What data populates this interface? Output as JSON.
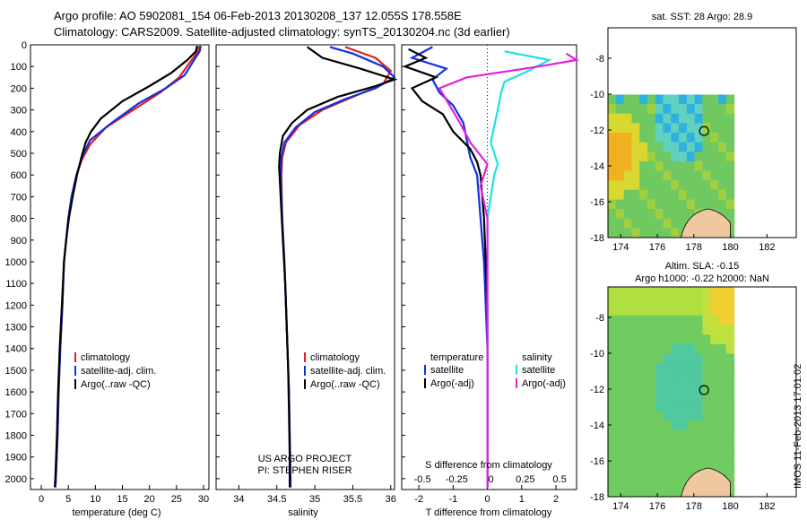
{
  "header": {
    "line1": "Argo profile: AO 5902081_154 06-Feb-2013 20130208_137 12.055S 178.558E",
    "line2": "Climatology: CARS2009. Satellite-adjusted climatology: synTS_20130204.nc (3d earlier)"
  },
  "side_stamp": "IMOS 11-Feb-2013 17:01:02",
  "colors": {
    "climatology": "#e02020",
    "satellite": "#1030e0",
    "argo": "#000000",
    "sal_satellite": "#20e0e0",
    "sal_argo": "#e020e0",
    "land": "#f0c8a0"
  },
  "chart_data": [
    {
      "id": "temperature",
      "type": "line",
      "xlabel": "temperature (deg C)",
      "xlim": [
        -2,
        31
      ],
      "xticks": [
        0,
        5,
        10,
        15,
        20,
        25,
        30
      ],
      "ylim": [
        2050,
        0
      ],
      "yticks": [
        0,
        100,
        200,
        300,
        400,
        500,
        600,
        700,
        800,
        900,
        1000,
        1100,
        1200,
        1300,
        1400,
        1500,
        1600,
        1700,
        1800,
        1900,
        2000
      ],
      "legend": [
        "climatology",
        "satellite-adj. clim.",
        "Argo(..raw -QC)"
      ],
      "series": [
        {
          "name": "climatology",
          "color": "#e02020",
          "points": [
            [
              29.2,
              5
            ],
            [
              29.0,
              30
            ],
            [
              27.5,
              80
            ],
            [
              25.5,
              150
            ],
            [
              22,
              220
            ],
            [
              17,
              300
            ],
            [
              12,
              380
            ],
            [
              9,
              460
            ],
            [
              7.5,
              530
            ],
            [
              6.5,
              600
            ],
            [
              5.6,
              700
            ],
            [
              5,
              800
            ],
            [
              4.6,
              900
            ],
            [
              4.2,
              1000
            ],
            [
              3.9,
              1200
            ],
            [
              3.5,
              1400
            ],
            [
              3.2,
              1600
            ],
            [
              3,
              1800
            ],
            [
              2.7,
              2000
            ],
            [
              2.6,
              2040
            ]
          ]
        },
        {
          "name": "satellite-adj. clim.",
          "color": "#1030e0",
          "points": [
            [
              29.5,
              5
            ],
            [
              29.3,
              30
            ],
            [
              28,
              80
            ],
            [
              26.5,
              140
            ],
            [
              23,
              200
            ],
            [
              18,
              270
            ],
            [
              13,
              360
            ],
            [
              9,
              440
            ],
            [
              7.5,
              520
            ],
            [
              6.5,
              600
            ],
            [
              5.6,
              700
            ],
            [
              5,
              800
            ],
            [
              4.6,
              900
            ],
            [
              4.2,
              1000
            ],
            [
              3.9,
              1200
            ],
            [
              3.5,
              1400
            ],
            [
              3.2,
              1600
            ],
            [
              3,
              1800
            ],
            [
              2.7,
              2000
            ],
            [
              2.6,
              2040
            ]
          ]
        },
        {
          "name": "Argo(..raw -QC)",
          "color": "#000000",
          "points": [
            [
              28.8,
              5
            ],
            [
              28.6,
              30
            ],
            [
              27,
              70
            ],
            [
              24,
              130
            ],
            [
              20,
              190
            ],
            [
              15,
              260
            ],
            [
              11,
              340
            ],
            [
              9.2,
              400
            ],
            [
              8.2,
              450
            ],
            [
              7.4,
              520
            ],
            [
              6.6,
              600
            ],
            [
              5.8,
              700
            ],
            [
              5.1,
              800
            ],
            [
              4.6,
              900
            ],
            [
              4.2,
              1000
            ],
            [
              3.8,
              1200
            ],
            [
              3.4,
              1400
            ],
            [
              3.1,
              1600
            ],
            [
              2.9,
              1800
            ],
            [
              2.6,
              2000
            ],
            [
              2.5,
              2040
            ]
          ]
        }
      ]
    },
    {
      "id": "salinity",
      "type": "line",
      "xlabel": "salinity",
      "xlim": [
        33.7,
        36.05
      ],
      "xticks": [
        34,
        34.5,
        35,
        35.5,
        36
      ],
      "ylim": [
        2050,
        0
      ],
      "legend": [
        "climatology",
        "satellite-adj. clim.",
        "Argo(..raw -QC)"
      ],
      "annotation": [
        "US ARGO PROJECT",
        "PI: STEPHEN RISER"
      ],
      "series": [
        {
          "name": "climatology",
          "color": "#e02020",
          "points": [
            [
              35.4,
              10
            ],
            [
              35.8,
              60
            ],
            [
              36.0,
              120
            ],
            [
              35.9,
              180
            ],
            [
              35.5,
              240
            ],
            [
              35.1,
              300
            ],
            [
              34.8,
              370
            ],
            [
              34.62,
              450
            ],
            [
              34.57,
              520
            ],
            [
              34.56,
              600
            ],
            [
              34.57,
              800
            ],
            [
              34.6,
              1000
            ],
            [
              34.62,
              1200
            ],
            [
              34.64,
              1400
            ],
            [
              34.66,
              1600
            ],
            [
              34.67,
              1800
            ],
            [
              34.68,
              2000
            ],
            [
              34.68,
              2040
            ]
          ]
        },
        {
          "name": "satellite-adj. clim.",
          "color": "#1030e0",
          "points": [
            [
              35.2,
              10
            ],
            [
              35.5,
              40
            ],
            [
              35.9,
              100
            ],
            [
              36.05,
              150
            ],
            [
              35.8,
              200
            ],
            [
              35.4,
              250
            ],
            [
              35.0,
              310
            ],
            [
              34.75,
              380
            ],
            [
              34.6,
              450
            ],
            [
              34.56,
              520
            ],
            [
              34.55,
              600
            ],
            [
              34.57,
              800
            ],
            [
              34.6,
              1000
            ],
            [
              34.62,
              1200
            ],
            [
              34.64,
              1400
            ],
            [
              34.66,
              1600
            ],
            [
              34.67,
              1800
            ],
            [
              34.68,
              2000
            ],
            [
              34.68,
              2040
            ]
          ]
        },
        {
          "name": "Argo(..raw -QC)",
          "color": "#000000",
          "points": [
            [
              34.9,
              10
            ],
            [
              35.1,
              60
            ],
            [
              35.6,
              110
            ],
            [
              36.05,
              160
            ],
            [
              35.8,
              190
            ],
            [
              35.3,
              240
            ],
            [
              34.9,
              300
            ],
            [
              34.7,
              360
            ],
            [
              34.58,
              420
            ],
            [
              34.54,
              500
            ],
            [
              34.53,
              560
            ],
            [
              34.55,
              700
            ],
            [
              34.58,
              900
            ],
            [
              34.61,
              1100
            ],
            [
              34.63,
              1300
            ],
            [
              34.65,
              1500
            ],
            [
              34.66,
              1700
            ],
            [
              34.67,
              1900
            ],
            [
              34.67,
              2040
            ]
          ]
        }
      ]
    },
    {
      "id": "difference",
      "type": "line",
      "xlabel": "T difference from climatology",
      "xlabel_top": "S difference from climatology",
      "xlim": [
        -2.5,
        2.6
      ],
      "xticks": [
        -2,
        -1,
        0,
        1,
        2
      ],
      "s_ticks": [
        [
          "-0.5",
          -2
        ],
        [
          "-0.25",
          -1
        ],
        [
          "0",
          0
        ],
        [
          "0.25",
          1
        ],
        [
          "0.5",
          2
        ]
      ],
      "ylim": [
        2050,
        0
      ],
      "legend_titles": [
        "temperature",
        "salinity"
      ],
      "legend": [
        "satellite",
        "Argo(-adj)",
        "satellite",
        "Argo(-adj)"
      ],
      "series": [
        {
          "name": "temperature satellite",
          "color": "#1030e0",
          "points": [
            [
              -1.6,
              10
            ],
            [
              -2.2,
              60
            ],
            [
              -1.2,
              110
            ],
            [
              -1.6,
              160
            ],
            [
              -1.4,
              220
            ],
            [
              -1.0,
              280
            ],
            [
              -0.7,
              360
            ],
            [
              -0.6,
              440
            ],
            [
              -0.5,
              520
            ],
            [
              -0.3,
              600
            ],
            [
              -0.2,
              800
            ],
            [
              -0.1,
              1000
            ],
            [
              0,
              1400
            ],
            [
              0,
              2040
            ]
          ]
        },
        {
          "name": "temperature Argo(-adj)",
          "color": "#000000",
          "points": [
            [
              -2.3,
              20
            ],
            [
              -1.8,
              60
            ],
            [
              -2.4,
              100
            ],
            [
              -1.5,
              150
            ],
            [
              -2.2,
              200
            ],
            [
              -1.9,
              260
            ],
            [
              -1.3,
              320
            ],
            [
              -1.0,
              400
            ],
            [
              -0.5,
              480
            ],
            [
              -0.3,
              540
            ],
            [
              -0.2,
              600
            ],
            [
              -0.1,
              800
            ],
            [
              0,
              1200
            ],
            [
              0,
              2040
            ]
          ]
        },
        {
          "name": "salinity satellite",
          "color": "#20e0e0",
          "points": [
            [
              0.5,
              30
            ],
            [
              1.8,
              70
            ],
            [
              1.2,
              120
            ],
            [
              0.5,
              170
            ],
            [
              0.4,
              220
            ],
            [
              0.3,
              300
            ],
            [
              0.1,
              450
            ],
            [
              0.3,
              550
            ],
            [
              0.2,
              600
            ],
            [
              0,
              800
            ],
            [
              0,
              2040
            ]
          ]
        },
        {
          "name": "salinity Argo(-adj)",
          "color": "#e020e0",
          "points": [
            [
              2.3,
              40
            ],
            [
              2.6,
              70
            ],
            [
              1.5,
              100
            ],
            [
              -0.6,
              150
            ],
            [
              -1.4,
              200
            ],
            [
              -1.1,
              280
            ],
            [
              -0.8,
              360
            ],
            [
              -0.5,
              450
            ],
            [
              0,
              550
            ],
            [
              -0.2,
              650
            ],
            [
              0,
              800
            ],
            [
              0,
              2040
            ]
          ]
        }
      ]
    },
    {
      "id": "sst_map",
      "type": "heatmap",
      "title": "sat. SST: 28 Argo: 28.9",
      "xticks": [
        174,
        176,
        178,
        180,
        182
      ],
      "yticks": [
        -8,
        -10,
        -12,
        -14,
        -16,
        -18
      ],
      "xlim": [
        173.3,
        183.6
      ],
      "ylim": [
        -18,
        -6.3
      ],
      "argo_position": [
        178.558,
        -12.055
      ]
    },
    {
      "id": "sla_map",
      "type": "heatmap",
      "title": "Altim. SLA: -0.15",
      "subtitle": "Argo h1000: -0.22 h2000: NaN",
      "xticks": [
        174,
        176,
        178,
        180,
        182
      ],
      "yticks": [
        -8,
        -10,
        -12,
        -14,
        -16,
        -18
      ],
      "xlim": [
        173.3,
        183.6
      ],
      "ylim": [
        -18,
        -6.3
      ],
      "argo_position": [
        178.558,
        -12.055
      ]
    }
  ]
}
